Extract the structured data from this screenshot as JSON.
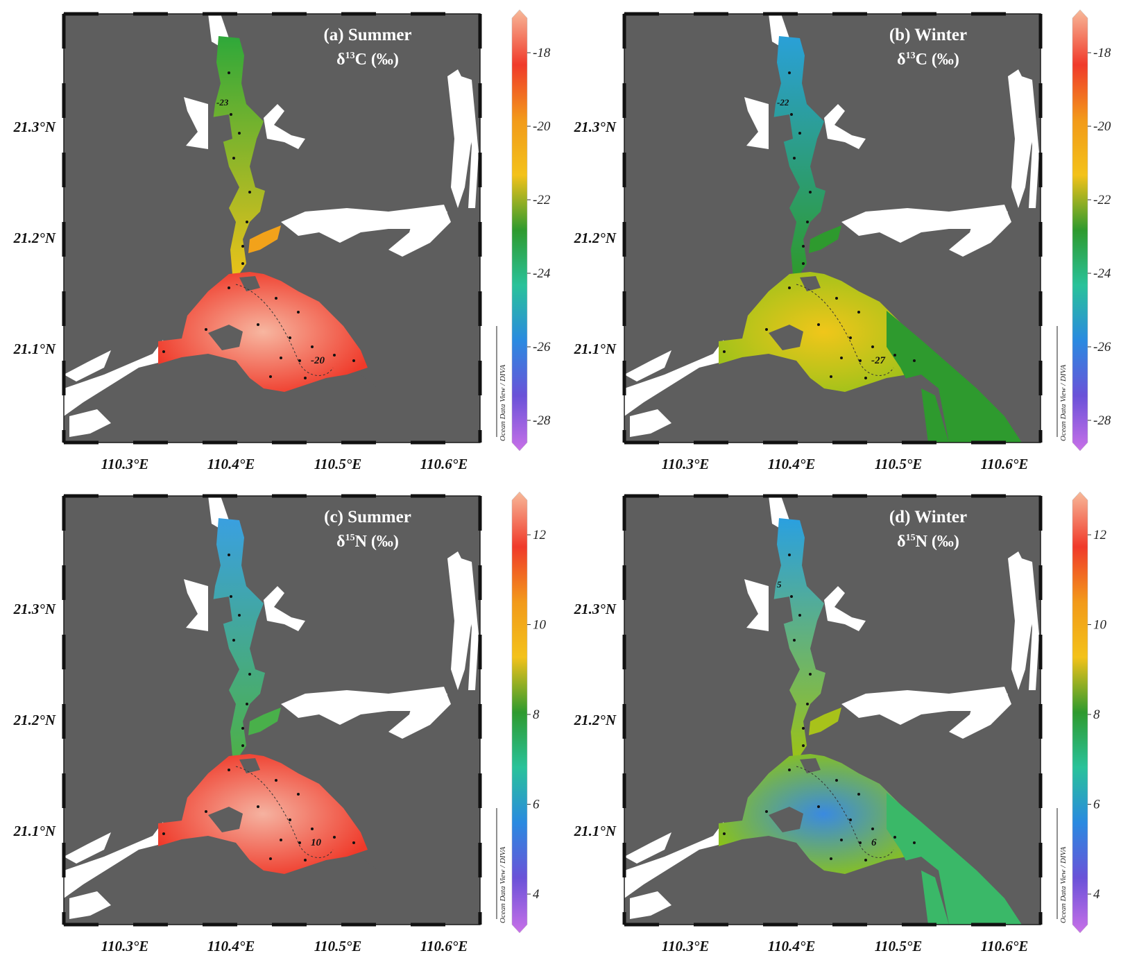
{
  "panels": [
    {
      "key": "a",
      "title": "(a) Summer",
      "isotope_symbol": "δ",
      "isotope_mass": "13",
      "isotope_element": "C (‰)",
      "colorbar_ticks": [
        "-18",
        "-20",
        "-22",
        "-24",
        "-26",
        "-28"
      ],
      "contour_label": "-20",
      "contour_label2": "-23",
      "season": "summer",
      "variable": "d13C"
    },
    {
      "key": "b",
      "title": "(b) Winter",
      "isotope_symbol": "δ",
      "isotope_mass": "13",
      "isotope_element": "C (‰)",
      "colorbar_ticks": [
        "-18",
        "-20",
        "-22",
        "-24",
        "-26",
        "-28"
      ],
      "contour_label": "-27",
      "contour_label2": "-22",
      "season": "winter",
      "variable": "d13C"
    },
    {
      "key": "c",
      "title": "(c) Summer",
      "isotope_symbol": "δ",
      "isotope_mass": "15",
      "isotope_element": "N (‰)",
      "colorbar_ticks": [
        "12",
        "10",
        "8",
        "6",
        "4"
      ],
      "contour_label": "10",
      "contour_label2": "",
      "season": "summer",
      "variable": "d15N"
    },
    {
      "key": "d",
      "title": "(d) Winter",
      "isotope_symbol": "δ",
      "isotope_mass": "15",
      "isotope_element": "N (‰)",
      "colorbar_ticks": [
        "12",
        "10",
        "8",
        "6",
        "4"
      ],
      "contour_label": "6",
      "contour_label2": "5",
      "season": "winter",
      "variable": "d15N"
    }
  ],
  "lat_labels": [
    "21.3°N",
    "21.2°N",
    "21.1°N"
  ],
  "lon_labels": [
    "110.3°E",
    "110.4°E",
    "110.5°E",
    "110.6°E"
  ],
  "credit": "Ocean Data View / DIVA",
  "colors": {
    "land": "#5e5e5e",
    "frame": "#1a1a1a"
  }
}
